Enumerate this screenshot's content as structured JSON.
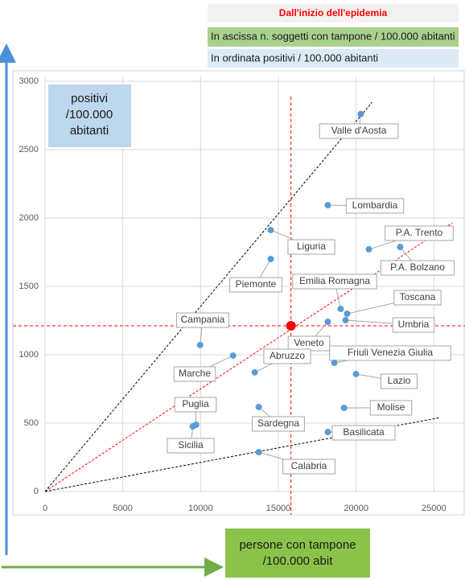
{
  "chart_data": {
    "type": "scatter",
    "header": [
      "Dall'inizio dell'epidemia",
      "In ascissa n. soggetti con tampone / 100.000 abitanti",
      "In ordinata positivi / 100.000 abitanti"
    ],
    "y_box": [
      "positivi",
      "/100.000",
      "abitanti"
    ],
    "x_box": [
      "persone con tampone",
      "/100.000 abit"
    ],
    "xlim": [
      0,
      27000
    ],
    "ylim": [
      0,
      3000
    ],
    "xticks": [
      0,
      5000,
      10000,
      15000,
      20000,
      25000
    ],
    "yticks": [
      0,
      500,
      1000,
      1500,
      2000,
      2500,
      3000
    ],
    "grid": true,
    "color": "#5b9bd5",
    "points": [
      {
        "name": "Valle d'Aosta",
        "x": 20300,
        "y": 2760
      },
      {
        "name": "Lombardia",
        "x": 18180,
        "y": 2094
      },
      {
        "name": "Liguria",
        "x": 14510,
        "y": 1912
      },
      {
        "name": "P.A. Trento",
        "x": 20820,
        "y": 1771
      },
      {
        "name": "P.A. Bolzano",
        "x": 22830,
        "y": 1788
      },
      {
        "name": "Piemonte",
        "x": 14510,
        "y": 1700
      },
      {
        "name": "Emilia Romagna",
        "x": 19010,
        "y": 1335
      },
      {
        "name": "Toscana",
        "x": 19420,
        "y": 1300
      },
      {
        "name": "Umbria",
        "x": 19320,
        "y": 1253
      },
      {
        "name": "Veneto",
        "x": 18180,
        "y": 1241
      },
      {
        "name": "Campania",
        "x": 9970,
        "y": 1071
      },
      {
        "name": "Marche",
        "x": 12090,
        "y": 994
      },
      {
        "name": "Abruzzo",
        "x": 13480,
        "y": 871
      },
      {
        "name": "Friuli Venezia Giulia",
        "x": 18600,
        "y": 941
      },
      {
        "name": "Lazio",
        "x": 19990,
        "y": 859
      },
      {
        "name": "Molise",
        "x": 19220,
        "y": 612
      },
      {
        "name": "Sardegna",
        "x": 13740,
        "y": 618
      },
      {
        "name": "Basilicata",
        "x": 18180,
        "y": 435
      },
      {
        "name": "Puglia",
        "x": 9710,
        "y": 488
      },
      {
        "name": "Sicilia",
        "x": 9500,
        "y": 476
      },
      {
        "name": "Calabria",
        "x": 13740,
        "y": 288
      }
    ],
    "average": {
      "x": 15810,
      "y": 1212,
      "color": "#ff0000"
    },
    "reference_lines": [
      {
        "x": [
          0,
          21030
        ],
        "y": [
          0,
          2847
        ],
        "color": "#000000"
      },
      {
        "x": [
          0,
          26190
        ],
        "y": [
          0,
          1965
        ],
        "color": "#ff0000"
      },
      {
        "x": [
          0,
          25410
        ],
        "y": [
          0,
          541
        ],
        "color": "#000000"
      }
    ]
  }
}
